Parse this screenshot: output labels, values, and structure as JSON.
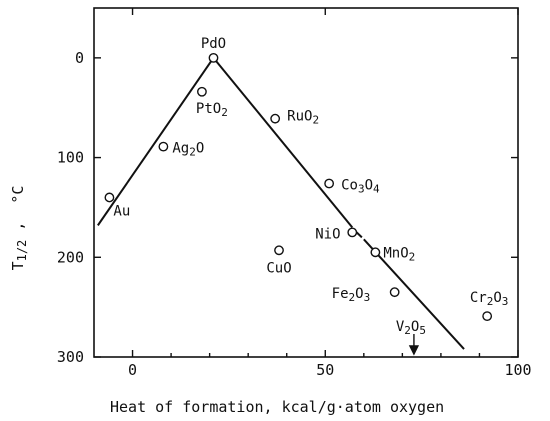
{
  "chart_data": {
    "type": "scatter",
    "xlabel": "Heat of formation,  kcal/g·atom oxygen",
    "ylabel": "T1/2 ,  °C",
    "ylabel_parts": {
      "main": "T",
      "sub": "1/2",
      "tail": " ,",
      "unit": "°C"
    },
    "xlim": [
      -10,
      100
    ],
    "ylim": [
      -50,
      300
    ],
    "y_inverted": true,
    "x_ticks": [
      0,
      50,
      100
    ],
    "x_tick_labels": [
      "0",
      "50",
      "100"
    ],
    "y_ticks": [
      0,
      100,
      200,
      300
    ],
    "y_tick_labels": [
      "0",
      "100",
      "200",
      "300"
    ],
    "grid": false,
    "points": [
      {
        "label": "Au",
        "x": -6,
        "y": 140,
        "parts": [
          {
            "t": "Au"
          }
        ]
      },
      {
        "label": "Ag2O",
        "x": 8,
        "y": 89,
        "parts": [
          {
            "t": "Ag"
          },
          {
            "t": "2",
            "sub": true
          },
          {
            "t": "O"
          }
        ]
      },
      {
        "label": "PtO2",
        "x": 18,
        "y": 34,
        "parts": [
          {
            "t": "PtO"
          },
          {
            "t": "2",
            "sub": true
          }
        ]
      },
      {
        "label": "PdO",
        "x": 21,
        "y": 0,
        "parts": [
          {
            "t": "PdO"
          }
        ]
      },
      {
        "label": "RuO2",
        "x": 37,
        "y": 61,
        "parts": [
          {
            "t": "RuO"
          },
          {
            "t": "2",
            "sub": true
          }
        ]
      },
      {
        "label": "CuO",
        "x": 38,
        "y": 193,
        "parts": [
          {
            "t": "CuO"
          }
        ]
      },
      {
        "label": "Co3O4",
        "x": 51,
        "y": 126,
        "parts": [
          {
            "t": "Co"
          },
          {
            "t": "3",
            "sub": true
          },
          {
            "t": "O"
          },
          {
            "t": "4",
            "sub": true
          }
        ]
      },
      {
        "label": "NiO",
        "x": 57,
        "y": 175,
        "parts": [
          {
            "t": "NiO"
          }
        ]
      },
      {
        "label": "MnO2",
        "x": 63,
        "y": 195,
        "parts": [
          {
            "t": "MnO"
          },
          {
            "t": "2",
            "sub": true
          }
        ]
      },
      {
        "label": "Fe2O3",
        "x": 68,
        "y": 235,
        "parts": [
          {
            "t": "Fe"
          },
          {
            "t": "2",
            "sub": true
          },
          {
            "t": "O"
          },
          {
            "t": "3",
            "sub": true
          }
        ]
      },
      {
        "label": "Cr2O3",
        "x": 92,
        "y": 259,
        "parts": [
          {
            "t": "Cr"
          },
          {
            "t": "2",
            "sub": true
          },
          {
            "t": "O"
          },
          {
            "t": "3",
            "sub": true
          }
        ]
      }
    ],
    "arrow_marker": {
      "label": "V2O5",
      "x": 73,
      "y_tip": 297,
      "parts": [
        {
          "t": "V"
        },
        {
          "t": "2",
          "sub": true
        },
        {
          "t": "O"
        },
        {
          "t": "5",
          "sub": true
        }
      ]
    },
    "trend_lines": [
      {
        "from": [
          -9,
          168
        ],
        "to": [
          21,
          0
        ]
      },
      {
        "from": [
          21,
          0
        ],
        "to": [
          57,
          170
        ],
        "gap_to": [
          60,
          182
        ]
      },
      {
        "from": [
          60,
          182
        ],
        "to": [
          86,
          292
        ]
      }
    ]
  }
}
